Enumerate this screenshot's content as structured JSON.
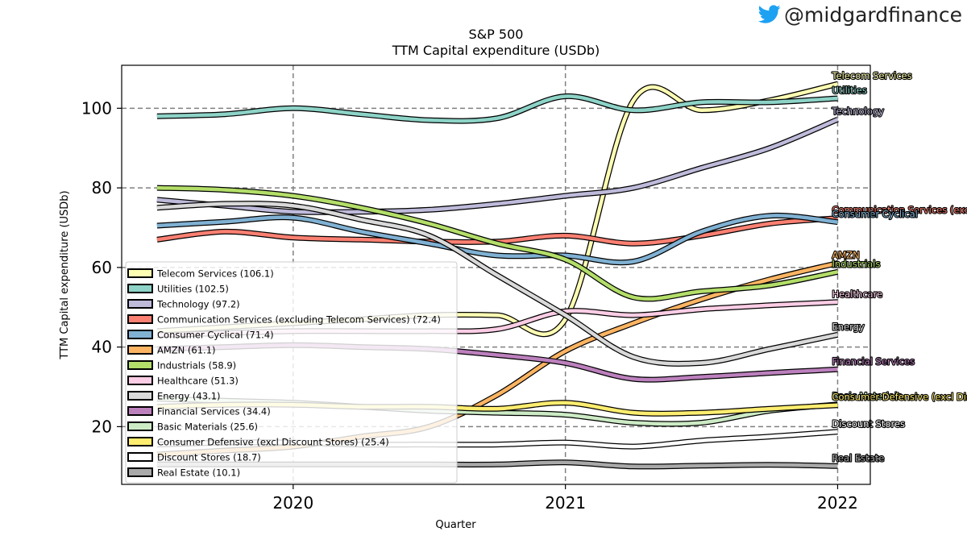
{
  "brand": {
    "handle": "@midgardfinance",
    "icon": "twitter-bird-icon",
    "icon_color": "#1DA1F2"
  },
  "chart_data": {
    "type": "line",
    "title": "S&P 500",
    "subtitle": "TTM Capital expenditure (USDb)",
    "xlabel": "Quarter",
    "ylabel": "TTM Capital expenditure (USDb)",
    "x": [
      2019.5,
      2019.75,
      2020.0,
      2020.25,
      2020.5,
      2020.75,
      2021.0,
      2021.25,
      2021.5,
      2021.75,
      2022.0
    ],
    "x_ticks": [
      2020,
      2021,
      2022
    ],
    "x_tick_labels": [
      "2020",
      "2021",
      "2022"
    ],
    "xlim": [
      2019.37,
      2022.12
    ],
    "y_ticks": [
      20,
      40,
      60,
      80,
      100
    ],
    "y_tick_labels": [
      "20",
      "40",
      "60",
      "80",
      "100"
    ],
    "ylim": [
      5.5,
      110.8
    ],
    "grid": true,
    "legend_position": "lower-left",
    "series": [
      {
        "name": "Telecom Services",
        "legend": "Telecom Services (106.1)",
        "label": "Telecom Services",
        "color": "#ffffb3",
        "values": [
          44,
          45,
          46,
          47,
          48,
          48,
          47,
          102,
          99.5,
          102,
          106.1
        ]
      },
      {
        "name": "Utilities",
        "legend": "Utilities (102.5)",
        "label": "Utilities",
        "color": "#8dd3c7",
        "values": [
          98,
          98.5,
          100,
          98.5,
          97,
          97.5,
          103,
          99.5,
          101.5,
          101.5,
          102.5
        ]
      },
      {
        "name": "Technology",
        "legend": "Technology (97.2)",
        "label": "Technology",
        "color": "#bebada",
        "values": [
          77,
          75.5,
          74,
          74,
          74.5,
          76,
          78,
          80,
          85,
          90,
          97.2
        ]
      },
      {
        "name": "Communication Services (excluding Telecom Services)",
        "legend": "Communication Services (excluding Telecom Services) (72.4)",
        "label": "Communication Services (excluding Telecom Services)",
        "color": "#fb8072",
        "values": [
          67,
          69,
          67.5,
          67,
          66.5,
          66.5,
          68,
          66,
          68,
          71,
          72.4
        ]
      },
      {
        "name": "Consumer Cyclical",
        "legend": "Consumer Cyclical (71.4)",
        "label": "Consumer Cyclical",
        "color": "#80b1d3",
        "values": [
          70.5,
          71.5,
          72.5,
          69,
          66,
          63,
          63,
          61.5,
          69,
          73,
          71.4
        ]
      },
      {
        "name": "AMZN",
        "legend": "AMZN (61.1)",
        "label": "AMZN",
        "color": "#fdb462",
        "values": [
          13,
          14,
          15,
          17.5,
          20,
          28,
          39,
          46,
          52,
          57,
          61.1
        ]
      },
      {
        "name": "Industrials",
        "legend": "Industrials (58.9)",
        "label": "Industrials",
        "color": "#b3de69",
        "values": [
          80,
          79.5,
          78,
          75,
          71,
          66,
          62,
          52.5,
          54,
          55.5,
          58.9
        ]
      },
      {
        "name": "Healthcare",
        "legend": "Healthcare (51.3)",
        "label": "Healthcare",
        "color": "#fccde5",
        "values": [
          43,
          43.5,
          44,
          44,
          44,
          44.5,
          49,
          48,
          49.5,
          50.5,
          51.3
        ]
      },
      {
        "name": "Energy",
        "legend": "Energy (43.1)",
        "label": "Energy",
        "color": "#d9d9d9",
        "values": [
          75,
          76,
          75.5,
          72,
          68,
          58,
          48,
          37.5,
          36,
          39.5,
          43.1
        ]
      },
      {
        "name": "Financial Services",
        "legend": "Financial Services (34.4)",
        "label": "Financial Services",
        "color": "#bc80bd",
        "values": [
          39.5,
          40,
          40.5,
          40,
          39.5,
          38,
          36,
          32,
          32.5,
          33.5,
          34.4
        ]
      },
      {
        "name": "Basic Materials",
        "legend": "Basic Materials (25.6)",
        "label": "Basic Materials",
        "color": "#ccebc5",
        "values": [
          27,
          26.5,
          26,
          25,
          24,
          23.5,
          23,
          21,
          21,
          24,
          25.6
        ]
      },
      {
        "name": "Consumer Defensive (excl Discount Stores)",
        "legend": "Consumer Defensive (excl Discount Stores) (25.4)",
        "label": "Consumer Defensive (excl Discount Stores)",
        "color": "#ffed6f",
        "values": [
          25,
          25.5,
          25.5,
          25,
          25,
          24.5,
          26,
          23.5,
          23.5,
          24.5,
          25.4
        ]
      },
      {
        "name": "Discount Stores",
        "legend": "Discount Stores (18.7)",
        "label": "Discount Stores",
        "color": "#ffffff",
        "values": [
          15.5,
          16,
          16,
          15.5,
          15.5,
          15.5,
          16,
          15,
          16.5,
          17.5,
          18.7
        ]
      },
      {
        "name": "Real Estate",
        "legend": "Real Estate (10.1)",
        "label": "Real Estate",
        "color": "#a9a9a9",
        "values": [
          10.5,
          10.5,
          10.5,
          10.5,
          10.5,
          10.5,
          11,
          10,
          10.2,
          10.4,
          10.1
        ]
      }
    ]
  }
}
